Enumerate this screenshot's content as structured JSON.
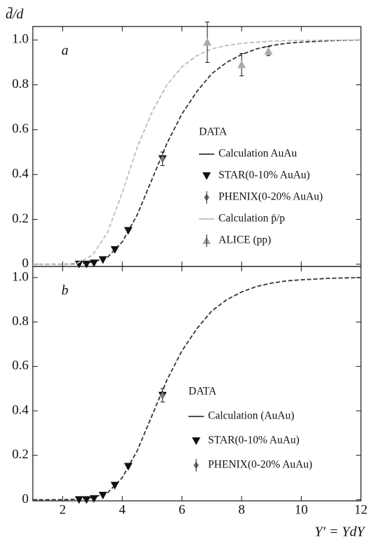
{
  "chart_data": [
    {
      "type": "line",
      "panel_label": "a",
      "y_label": "d̄/d",
      "legend_title": "DATA",
      "xlim": [
        1,
        12
      ],
      "xticks": [
        2,
        4,
        6,
        8,
        10,
        12
      ],
      "show_xtick_labels": false,
      "ylim": [
        -0.01,
        1.06
      ],
      "yticks": [
        0,
        0.2,
        0.4,
        0.6,
        0.8,
        {
          "value": 1,
          "label": "1.0"
        }
      ],
      "series": [
        {
          "name": "Calculation AuAu",
          "color": "#333333",
          "style": "dashed",
          "x": [
            1,
            2,
            2.5,
            3,
            3.5,
            4,
            4.5,
            5,
            5.5,
            6,
            6.5,
            7,
            7.5,
            8,
            8.5,
            9,
            9.5,
            10,
            11,
            12
          ],
          "values": [
            0,
            0,
            0.002,
            0.01,
            0.03,
            0.1,
            0.22,
            0.38,
            0.54,
            0.67,
            0.77,
            0.85,
            0.9,
            0.935,
            0.96,
            0.975,
            0.985,
            0.99,
            0.997,
            1
          ]
        },
        {
          "name": "STAR(0-10% AuAu)",
          "color": "#111111",
          "marker": "triangle-down",
          "x": [
            2.55,
            2.8,
            3.05,
            3.35,
            3.75,
            4.2,
            5.35
          ],
          "values": [
            0,
            0,
            0.005,
            0.02,
            0.065,
            0.15,
            0.47
          ]
        },
        {
          "name": "PHENIX(0-20% AuAu)",
          "color": "#777777",
          "marker": "diamond",
          "x": [
            5.35
          ],
          "values": [
            0.47
          ],
          "errors": [
            0.03
          ]
        },
        {
          "name": "Calculation p̄/p",
          "color": "#bbbbbb",
          "style": "dashed",
          "x": [
            1,
            2,
            2.5,
            3,
            3.5,
            4,
            4.5,
            5,
            5.5,
            6,
            6.5,
            7,
            7.5,
            8,
            9,
            10,
            12
          ],
          "values": [
            0,
            0,
            0.005,
            0.04,
            0.14,
            0.32,
            0.52,
            0.68,
            0.8,
            0.88,
            0.93,
            0.96,
            0.975,
            0.985,
            0.995,
            0.998,
            1
          ]
        },
        {
          "name": "ALICE (pp)",
          "color": "#aaaaaa",
          "marker": "triangle-up",
          "x": [
            6.85,
            8.0,
            8.9
          ],
          "values": [
            0.99,
            0.89,
            0.95
          ],
          "errors": [
            0.09,
            0.05,
            0.02
          ]
        }
      ]
    },
    {
      "type": "line",
      "panel_label": "b",
      "x_label": "Y′ = YdY",
      "legend_title": "DATA",
      "xlim": [
        1,
        12
      ],
      "xticks": [
        2,
        4,
        6,
        8,
        10,
        12
      ],
      "show_xtick_labels": true,
      "ylim": [
        -0.005,
        1.05
      ],
      "yticks": [
        0,
        0.2,
        0.4,
        0.6,
        0.8,
        {
          "value": 1,
          "label": "1.0"
        }
      ],
      "series": [
        {
          "name": "Calculation (AuAu)",
          "color": "#333333",
          "style": "dashed",
          "x": [
            1,
            2,
            2.5,
            3,
            3.5,
            4,
            4.5,
            5,
            5.5,
            6,
            6.5,
            7,
            7.5,
            8,
            8.5,
            9,
            9.5,
            10,
            11,
            12
          ],
          "values": [
            0,
            0,
            0.002,
            0.01,
            0.03,
            0.1,
            0.22,
            0.38,
            0.54,
            0.67,
            0.77,
            0.85,
            0.9,
            0.935,
            0.96,
            0.975,
            0.985,
            0.99,
            0.997,
            1
          ]
        },
        {
          "name": "STAR(0-10% AuAu)",
          "color": "#111111",
          "marker": "triangle-down",
          "x": [
            2.55,
            2.8,
            3.05,
            3.35,
            3.75,
            4.2,
            5.35
          ],
          "values": [
            0,
            0,
            0.005,
            0.02,
            0.065,
            0.15,
            0.47
          ]
        },
        {
          "name": "PHENIX(0-20% AuAu)",
          "color": "#777777",
          "marker": "diamond",
          "x": [
            5.35
          ],
          "values": [
            0.47
          ],
          "errors": [
            0.03
          ]
        }
      ]
    }
  ]
}
